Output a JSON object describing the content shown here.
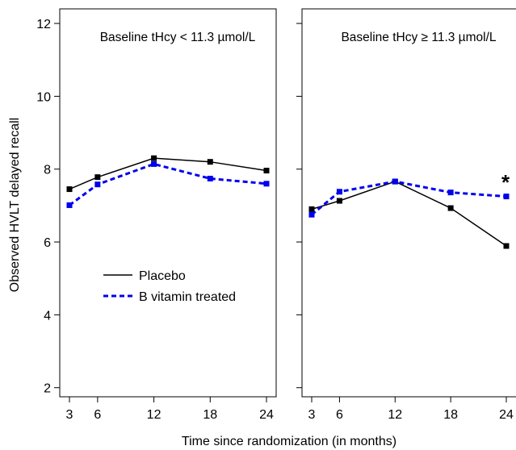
{
  "chart_data": {
    "type": "line",
    "xlabel": "Time since randomization (in months)",
    "ylabel": "Observed HVLT delayed recall",
    "x_ticks": [
      3,
      6,
      12,
      18,
      24
    ],
    "y_ticks": [
      2,
      4,
      6,
      8,
      10,
      12
    ],
    "xlim": [
      2,
      25.2
    ],
    "ylim": [
      1.75,
      12.4
    ],
    "grid": false,
    "legend": {
      "location": "left panel, lower-left",
      "entries": [
        "Placebo",
        "B vitamin treated"
      ]
    },
    "colors": {
      "placebo": "#000000",
      "treated": "#0000ee"
    },
    "panels": [
      {
        "title": "Baseline tHcy < 11.3 µmol/L",
        "series": [
          {
            "name": "Placebo",
            "style": "solid",
            "x": [
              3,
              6,
              12,
              18,
              24
            ],
            "values": [
              7.45,
              7.78,
              8.3,
              8.2,
              7.96
            ]
          },
          {
            "name": "B vitamin treated",
            "style": "dashed",
            "x": [
              3,
              6,
              12,
              18,
              24
            ],
            "values": [
              7.01,
              7.58,
              8.14,
              7.74,
              7.6
            ]
          }
        ],
        "annotation": ""
      },
      {
        "title": "Baseline tHcy ≥ 11.3 µmol/L",
        "series": [
          {
            "name": "Placebo",
            "style": "solid",
            "x": [
              3,
              6,
              12,
              18,
              24
            ],
            "values": [
              6.9,
              7.13,
              7.66,
              6.93,
              5.89
            ]
          },
          {
            "name": "B vitamin treated",
            "style": "dashed",
            "x": [
              3,
              6,
              12,
              18,
              24
            ],
            "values": [
              6.75,
              7.38,
              7.66,
              7.36,
              7.25
            ]
          }
        ],
        "annotation": "*"
      }
    ]
  }
}
